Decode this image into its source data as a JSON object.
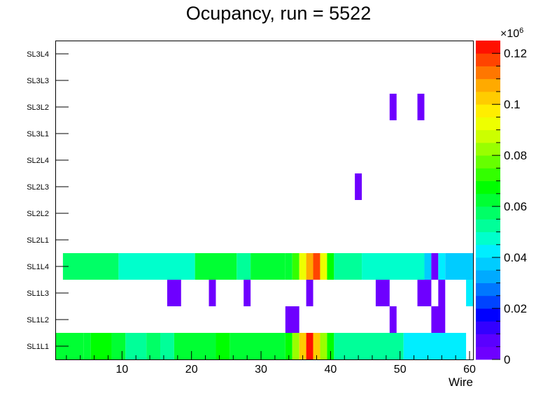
{
  "chart_data": {
    "type": "heatmap",
    "title": "Ocupancy, run = 5522",
    "xlabel": "Wire",
    "ylabel": "",
    "xlim": [
      0.5,
      60.5
    ],
    "x_ticks": [
      10,
      20,
      30,
      40,
      50,
      60
    ],
    "y_categories": [
      "SL1L1",
      "SL1L2",
      "SL1L3",
      "SL1L4",
      "SL2L1",
      "SL2L2",
      "SL2L3",
      "SL2L4",
      "SL3L1",
      "SL3L2",
      "SL3L3",
      "SL3L4"
    ],
    "z_unit_multiplier": "×10",
    "z_unit_exponent": "6",
    "zlim": [
      0,
      0.125
    ],
    "z_ticks": [
      0,
      0.02,
      0.04,
      0.06,
      0.08,
      0.1,
      0.12
    ],
    "z_tick_labels": [
      "0",
      "0.02",
      "0.04",
      "0.06",
      "0.08",
      "0.1",
      "0.12"
    ],
    "palette": [
      "#6e00ff",
      "#5a00ff",
      "#3300ff",
      "#0000ff",
      "#0044ff",
      "#0077ff",
      "#00aaff",
      "#00ccff",
      "#00eeff",
      "#00ffcc",
      "#00ff99",
      "#00ff66",
      "#00ff33",
      "#00ff00",
      "#33ff00",
      "#66ff00",
      "#99ff00",
      "#ccff00",
      "#eeff00",
      "#ffee00",
      "#ffcc00",
      "#ffaa00",
      "#ff7700",
      "#ff4400",
      "#ff1100"
    ],
    "rows": {
      "SL1L1": [
        [
          1,
          4,
          0.06
        ],
        [
          5,
          5,
          0.063
        ],
        [
          6,
          8,
          0.069
        ],
        [
          9,
          10,
          0.061
        ],
        [
          11,
          13,
          0.052
        ],
        [
          14,
          15,
          0.058
        ],
        [
          16,
          17,
          0.05
        ],
        [
          18,
          23,
          0.06
        ],
        [
          24,
          25,
          0.066
        ],
        [
          26,
          33,
          0.06
        ],
        [
          34,
          34,
          0.069
        ],
        [
          35,
          35,
          0.084
        ],
        [
          36,
          36,
          0.1
        ],
        [
          37,
          37,
          0.123
        ],
        [
          38,
          38,
          0.104
        ],
        [
          39,
          39,
          0.082
        ],
        [
          40,
          40,
          0.067
        ],
        [
          41,
          50,
          0.05
        ],
        [
          51,
          59,
          0.044
        ]
      ],
      "SL1L2": [
        [
          34,
          35,
          0.003
        ],
        [
          49,
          49,
          0.003
        ],
        [
          55,
          56,
          0.003
        ]
      ],
      "SL1L3": [
        [
          17,
          18,
          0.003
        ],
        [
          23,
          23,
          0.003
        ],
        [
          28,
          28,
          0.003
        ],
        [
          37,
          37,
          0.003
        ],
        [
          47,
          48,
          0.003
        ],
        [
          53,
          54,
          0.003
        ],
        [
          56,
          56,
          0.003
        ],
        [
          60,
          60,
          0.042
        ]
      ],
      "SL1L4": [
        [
          2,
          9,
          0.057
        ],
        [
          10,
          20,
          0.049
        ],
        [
          21,
          26,
          0.06
        ],
        [
          27,
          28,
          0.05
        ],
        [
          29,
          33,
          0.06
        ],
        [
          34,
          34,
          0.064
        ],
        [
          35,
          35,
          0.071
        ],
        [
          36,
          36,
          0.092
        ],
        [
          37,
          37,
          0.108
        ],
        [
          38,
          38,
          0.118
        ],
        [
          39,
          39,
          0.09
        ],
        [
          40,
          40,
          0.067
        ],
        [
          41,
          44,
          0.052
        ],
        [
          45,
          53,
          0.045
        ],
        [
          54,
          54,
          0.036
        ],
        [
          55,
          55,
          0.003
        ],
        [
          56,
          56,
          0.04
        ],
        [
          57,
          60,
          0.036
        ]
      ],
      "SL2L3": [
        [
          44,
          44,
          0.003
        ]
      ],
      "SL3L2": [
        [
          49,
          49,
          0.003
        ],
        [
          53,
          53,
          0.003
        ]
      ]
    }
  }
}
